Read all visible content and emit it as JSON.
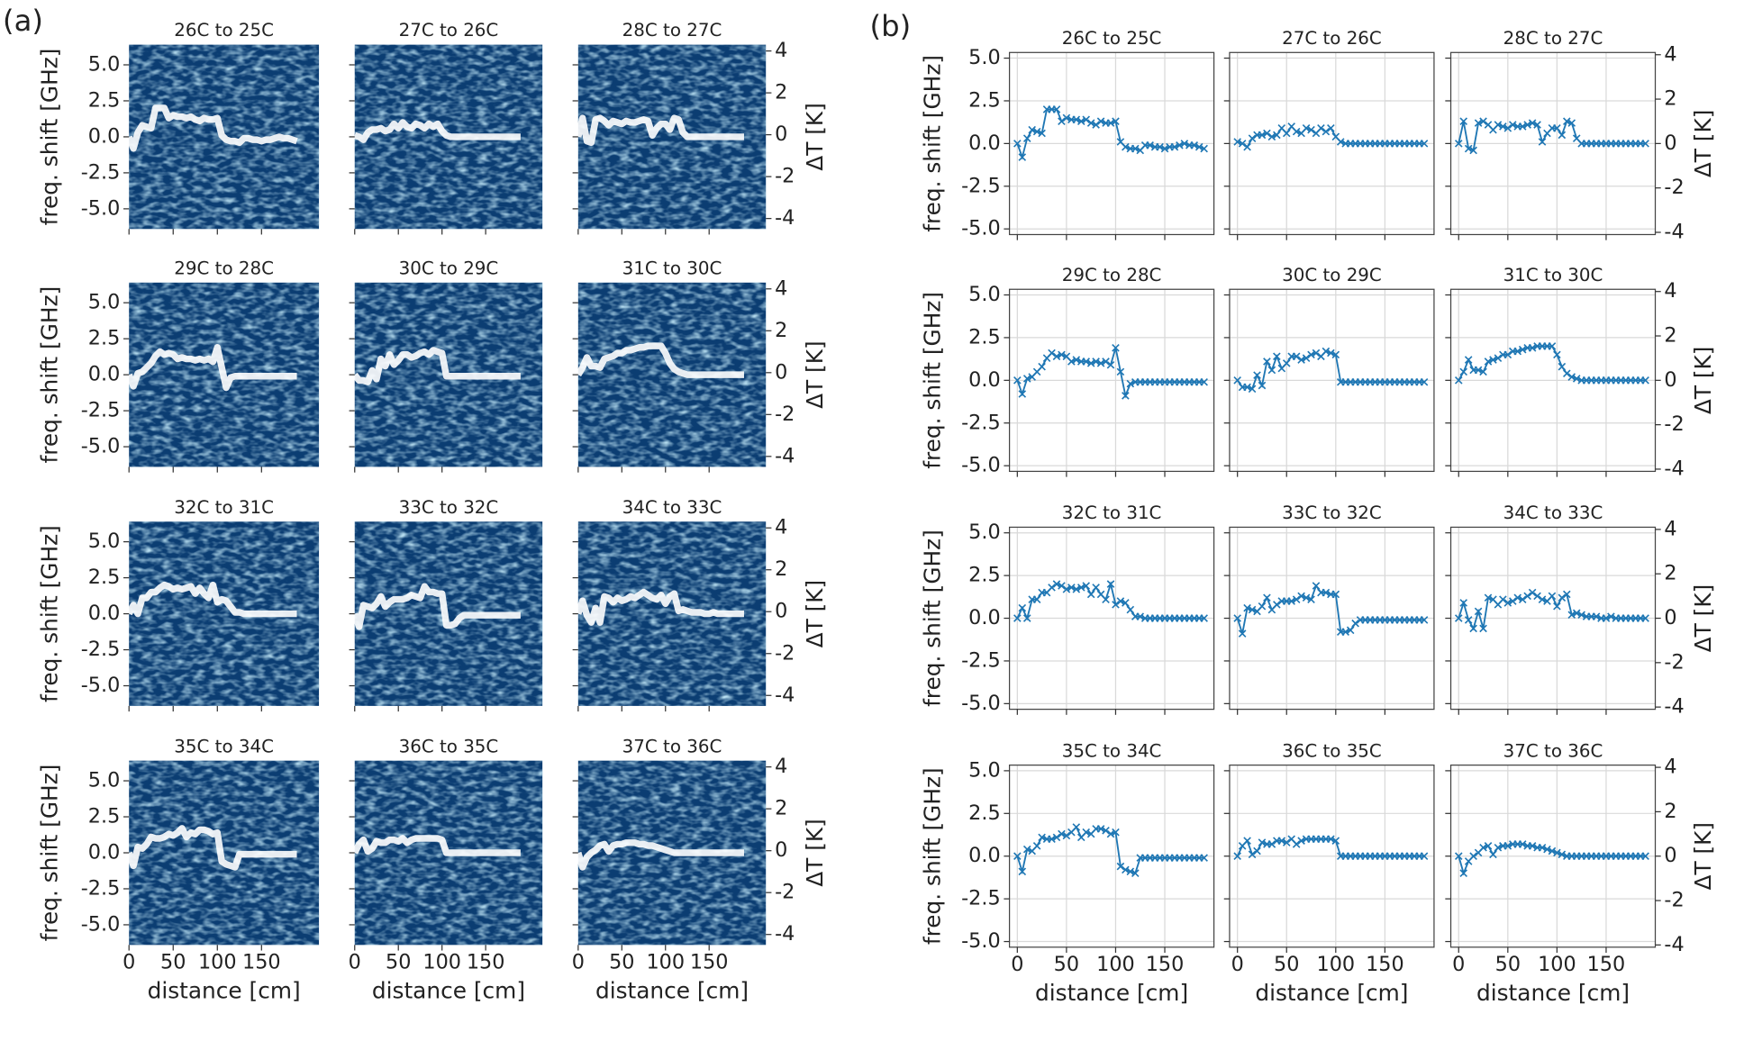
{
  "chart_data": [
    {
      "type": "heatmap",
      "panel_label": "(a)",
      "xlabel": "distance [cm]",
      "ylabel": "freq. shift [GHz]",
      "y2label": "ΔT [K]",
      "xlim": [
        0,
        215
      ],
      "xticks": [
        0,
        50,
        100,
        150
      ],
      "ylim": [
        -6.4,
        6.4
      ],
      "yticks": [
        {
          "value": -5,
          "label": "-5.0"
        },
        -2.5,
        {
          "value": 0,
          "label": "0.0"
        },
        2.5,
        {
          "value": 5,
          "label": "5.0"
        }
      ],
      "y2lim": [
        -4.5,
        4.3
      ],
      "y2ticks": [
        -4,
        -2,
        0,
        2,
        4
      ]
    },
    {
      "type": "line",
      "panel_label": "(b)",
      "xlabel": "distance [cm]",
      "ylabel": "freq. shift [GHz]",
      "y2label": "ΔT [K]",
      "xlim": [
        -8,
        200
      ],
      "xticks": [
        0,
        50,
        100,
        150
      ],
      "ylim": [
        -5.33,
        5.33
      ],
      "yticks": [
        {
          "value": -5,
          "label": "-5.0"
        },
        -2.5,
        {
          "value": 0,
          "label": "0.0"
        },
        2.5,
        {
          "value": 5,
          "label": "5.0"
        }
      ],
      "y2lim": [
        -4.1,
        4.1
      ],
      "y2ticks": [
        -4,
        -2,
        0,
        2,
        4
      ],
      "grid": true,
      "x": [
        0,
        5,
        10,
        15,
        20,
        25,
        30,
        35,
        40,
        45,
        50,
        55,
        60,
        65,
        70,
        75,
        80,
        85,
        90,
        95,
        100,
        105,
        110,
        115,
        120,
        125,
        130,
        135,
        140,
        145,
        150,
        155,
        160,
        165,
        170,
        175,
        180,
        185,
        190
      ],
      "series": [
        {
          "name": "26C to 25C",
          "color": "#1f77b4",
          "values": [
            0,
            -0.8,
            0.3,
            0.8,
            0.7,
            0.6,
            2.0,
            2.0,
            2.0,
            1.3,
            1.5,
            1.4,
            1.4,
            1.3,
            1.4,
            1.2,
            1.1,
            1.3,
            1.2,
            1.2,
            1.3,
            0.1,
            -0.2,
            -0.3,
            -0.3,
            -0.4,
            -0.1,
            -0.1,
            -0.2,
            -0.2,
            -0.3,
            -0.2,
            -0.2,
            -0.1,
            0,
            -0.1,
            -0.1,
            -0.2,
            -0.3
          ]
        },
        {
          "name": "27C to 26C",
          "color": "#1f77b4",
          "values": [
            0.1,
            0,
            -0.2,
            0.3,
            0.5,
            0.5,
            0.6,
            0.4,
            0.5,
            0.9,
            0.6,
            1.0,
            0.7,
            0.6,
            0.9,
            0.8,
            0.6,
            0.9,
            0.7,
            0.9,
            0.4,
            0.1,
            0,
            0,
            0,
            0,
            0,
            0,
            0,
            0,
            0,
            0,
            0,
            0,
            0,
            0,
            0,
            0,
            0
          ]
        },
        {
          "name": "28C to 27C",
          "color": "#1f77b4",
          "values": [
            0,
            1.3,
            -0.3,
            -0.4,
            1.2,
            1.3,
            1.1,
            0.8,
            1.1,
            1.0,
            0.9,
            1.1,
            1.0,
            1.0,
            1.1,
            1.2,
            1.1,
            0.1,
            0.6,
            0.9,
            0.9,
            0.5,
            1.3,
            1.2,
            0.3,
            0,
            0,
            0,
            0,
            0,
            0,
            0,
            0,
            0,
            0,
            0,
            0,
            0,
            0
          ]
        },
        {
          "name": "29C to 28C",
          "color": "#1f77b4",
          "values": [
            0,
            -0.8,
            0.1,
            0.2,
            0.5,
            0.8,
            1.3,
            1.6,
            1.4,
            1.5,
            1.4,
            1.1,
            1.2,
            1.1,
            1.1,
            1.0,
            1.1,
            1.0,
            1.1,
            0.9,
            1.9,
            0.5,
            -0.9,
            -0.2,
            -0.1,
            -0.1,
            -0.1,
            -0.1,
            -0.1,
            -0.1,
            -0.1,
            -0.1,
            -0.1,
            -0.1,
            -0.1,
            -0.1,
            -0.1,
            -0.1,
            -0.1
          ]
        },
        {
          "name": "30C to 29C",
          "color": "#1f77b4",
          "values": [
            0,
            -0.4,
            -0.4,
            -0.5,
            0.3,
            -0.3,
            1.1,
            0.6,
            1.4,
            0.7,
            1.0,
            1.4,
            1.4,
            1.2,
            1.3,
            1.5,
            1.6,
            1.4,
            1.7,
            1.6,
            1.5,
            -0.1,
            -0.1,
            -0.1,
            -0.1,
            -0.1,
            -0.1,
            -0.1,
            -0.1,
            -0.1,
            -0.1,
            -0.1,
            -0.1,
            -0.1,
            -0.1,
            -0.1,
            -0.1,
            -0.1,
            -0.1
          ]
        },
        {
          "name": "31C to 30C",
          "color": "#1f77b4",
          "values": [
            0,
            0.5,
            1.2,
            0.6,
            0.6,
            0.5,
            1.1,
            1.2,
            1.3,
            1.5,
            1.5,
            1.7,
            1.7,
            1.8,
            1.9,
            1.9,
            2.0,
            2.0,
            2.0,
            2.0,
            1.5,
            0.8,
            0.4,
            0.2,
            0.1,
            0,
            0,
            0,
            0,
            0,
            0,
            0,
            0,
            0,
            0,
            0,
            0,
            0,
            0
          ]
        },
        {
          "name": "32C to 31C",
          "color": "#1f77b4",
          "values": [
            0,
            0.6,
            0,
            1.1,
            1.1,
            1.5,
            1.5,
            1.8,
            2.0,
            1.9,
            1.7,
            1.8,
            1.7,
            1.8,
            1.9,
            1.4,
            1.8,
            1.4,
            1.1,
            2.0,
            0.8,
            1.0,
            0.9,
            0.5,
            0.1,
            0.1,
            0,
            0,
            0,
            0,
            0,
            0,
            0,
            0,
            0,
            0,
            0,
            0,
            0
          ]
        },
        {
          "name": "33C to 32C",
          "color": "#1f77b4",
          "values": [
            0,
            -0.9,
            0.6,
            0.5,
            0.4,
            0.7,
            1.2,
            0.5,
            0.8,
            1.0,
            1.0,
            1.0,
            1.1,
            1.3,
            1.2,
            1.1,
            1.9,
            1.5,
            1.5,
            1.4,
            1.4,
            -0.8,
            -0.8,
            -0.7,
            -0.3,
            -0.1,
            -0.1,
            -0.1,
            -0.1,
            -0.1,
            -0.1,
            -0.1,
            -0.1,
            -0.1,
            -0.1,
            -0.1,
            -0.1,
            -0.1,
            -0.1
          ]
        },
        {
          "name": "34C to 33C",
          "color": "#1f77b4",
          "values": [
            0,
            0.9,
            -0.1,
            -0.6,
            0.4,
            -0.6,
            1.2,
            1.1,
            0.8,
            1.1,
            0.9,
            1.0,
            1.2,
            1.1,
            1.3,
            1.5,
            1.3,
            1.1,
            1.0,
            1.3,
            0.7,
            1.2,
            1.4,
            0.2,
            0.3,
            0.2,
            0.1,
            0.1,
            0.1,
            0,
            0,
            0.1,
            0,
            0,
            0,
            0,
            0,
            0,
            0
          ]
        },
        {
          "name": "35C to 34C",
          "color": "#1f77b4",
          "values": [
            0,
            -0.9,
            0.4,
            0.3,
            0.6,
            1.1,
            1.0,
            1.0,
            1.1,
            1.3,
            1.2,
            1.4,
            1.7,
            1.1,
            1.4,
            1.3,
            1.6,
            1.6,
            1.5,
            1.3,
            1.4,
            -0.6,
            -0.8,
            -0.9,
            -1.0,
            -0.1,
            -0.1,
            -0.1,
            -0.1,
            -0.1,
            -0.1,
            -0.1,
            -0.1,
            -0.1,
            -0.1,
            -0.1,
            -0.1,
            -0.1,
            -0.1
          ]
        },
        {
          "name": "36C to 35C",
          "color": "#1f77b4",
          "values": [
            0,
            0.6,
            0.9,
            0.1,
            0.3,
            0.8,
            0.7,
            0.7,
            0.9,
            0.9,
            0.8,
            1.0,
            0.7,
            0.9,
            1.0,
            1.0,
            1.0,
            1.0,
            1.0,
            1.0,
            0.9,
            0,
            0,
            0,
            0,
            0,
            0,
            0,
            0,
            0,
            0,
            0,
            0,
            0,
            0,
            0,
            0,
            0,
            0
          ]
        },
        {
          "name": "37C to 36C",
          "color": "#1f77b4",
          "values": [
            0,
            -1.0,
            -0.3,
            0,
            0.2,
            0.5,
            0.6,
            0.1,
            0.5,
            0.6,
            0.6,
            0.7,
            0.7,
            0.7,
            0.6,
            0.6,
            0.5,
            0.5,
            0.4,
            0.3,
            0.2,
            0.1,
            0,
            0,
            0,
            0,
            0,
            0,
            0,
            0,
            0,
            0,
            0,
            0,
            0,
            0,
            0,
            0,
            0
          ]
        }
      ]
    }
  ]
}
